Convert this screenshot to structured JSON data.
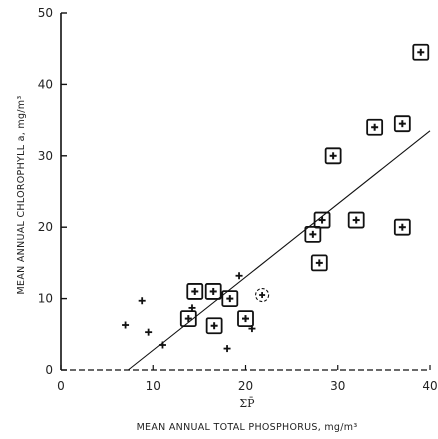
{
  "chart_data": {
    "type": "scatter",
    "title": "",
    "xlabel": "MEAN ANNUAL TOTAL PHOSPHORUS, mg/m³",
    "x_sublabel": "ΣP̄",
    "ylabel": "MEAN ANNUAL CHLOROPHYLL a, mg/m³",
    "xlim": [
      0,
      40
    ],
    "ylim": [
      0,
      50
    ],
    "xticks": [
      "0",
      "10",
      "20",
      "30",
      "40"
    ],
    "yticks": [
      "0",
      "10",
      "20",
      "30",
      "40",
      "50"
    ],
    "grid": false,
    "legend": "none",
    "series": [
      {
        "marker": "boxed-plus",
        "points": [
          {
            "x": 13.8,
            "y": 7.2
          },
          {
            "x": 14.5,
            "y": 11.0
          },
          {
            "x": 16.5,
            "y": 11.0
          },
          {
            "x": 16.6,
            "y": 6.2
          },
          {
            "x": 18.3,
            "y": 10.0
          },
          {
            "x": 20.0,
            "y": 7.2
          },
          {
            "x": 27.3,
            "y": 19.0
          },
          {
            "x": 28.0,
            "y": 15.0
          },
          {
            "x": 28.3,
            "y": 21.0
          },
          {
            "x": 29.5,
            "y": 30.0
          },
          {
            "x": 32.0,
            "y": 21.0
          },
          {
            "x": 34.0,
            "y": 34.0
          },
          {
            "x": 37.0,
            "y": 34.5
          },
          {
            "x": 37.0,
            "y": 20.0
          },
          {
            "x": 39.0,
            "y": 44.5
          }
        ]
      },
      {
        "marker": "circled-plus",
        "points": [
          {
            "x": 21.8,
            "y": 10.5
          }
        ]
      },
      {
        "marker": "plus",
        "points": [
          {
            "x": 7.0,
            "y": 6.3
          },
          {
            "x": 8.8,
            "y": 9.7
          },
          {
            "x": 9.5,
            "y": 5.3
          },
          {
            "x": 11.0,
            "y": 3.5
          },
          {
            "x": 14.2,
            "y": 8.7
          },
          {
            "x": 18.0,
            "y": 3.0
          },
          {
            "x": 19.3,
            "y": 13.2
          },
          {
            "x": 20.7,
            "y": 5.8
          }
        ]
      }
    ],
    "trendline": {
      "x1": 7.3,
      "y1": 0,
      "x2": 40,
      "y2": 33.5
    }
  }
}
